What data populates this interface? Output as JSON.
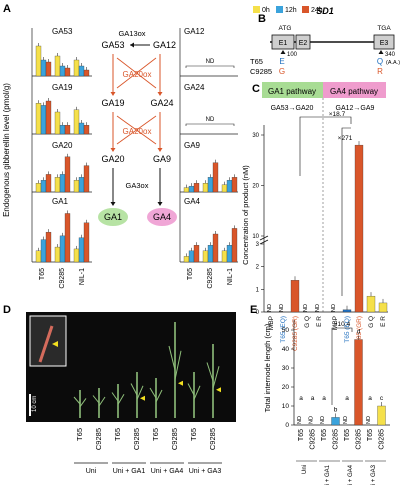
{
  "panels": {
    "A": {
      "letter": "A",
      "ylabel": "Endogenous gibberellin level (pmol/g)",
      "legend": [
        {
          "label": "0h",
          "color": "#f5e04a"
        },
        {
          "label": "12h",
          "color": "#3ba3dc"
        },
        {
          "label": "24h",
          "color": "#d9562a"
        }
      ],
      "genotypes": [
        "T65",
        "C9285",
        "NIL-1"
      ],
      "left_titles": [
        "GA53",
        "GA19",
        "GA20",
        "GA1"
      ],
      "right_titles": [
        "GA12",
        "GA24",
        "GA9",
        "GA4"
      ],
      "nd_label": "ND",
      "pathway": {
        "ga13ox": "GA13ox",
        "ga20ox_1": "GA20ox",
        "ga20ox_2": "GA20ox",
        "ga3ox": "GA3ox",
        "n_ga53": "GA53",
        "n_ga12": "GA12",
        "n_ga19": "GA19",
        "n_ga24": "GA24",
        "n_ga20": "GA20",
        "n_ga9": "GA9",
        "n_ga1": "GA1",
        "n_ga4": "GA4"
      }
    },
    "B": {
      "letter": "B",
      "gene": "SD1",
      "atg": "ATG",
      "tga": "TGA",
      "exons": [
        "E1",
        "E2",
        "E3"
      ],
      "pos_100": "100",
      "pos_340": "340",
      "t65": "T65",
      "c9285": "C9285",
      "t65_aa1": "E",
      "c9285_aa1": "G",
      "t65_aa2": "Q",
      "c9285_aa2": "R",
      "aa_note": "(A.A.)"
    },
    "C": {
      "letter": "C",
      "ylabel": "Concentration of product (nM)",
      "ga1_pathway": "GA1 pathway",
      "ga4_pathway": "GA4 pathway",
      "ga1_reaction": "GA53→GA20",
      "ga4_reaction": "GA12→GA9",
      "fold1": "×18.7",
      "fold2": "×271",
      "nd_label": "ND",
      "xlabels": [
        "MBP",
        "T65 (EQ)",
        "C9285 (GR)",
        "G Q",
        "E R",
        "MBP",
        "T65 (EQ)",
        "C9285 (GR)",
        "G Q",
        "E R"
      ],
      "yticks": [
        "0",
        "1",
        "2",
        "3",
        "10",
        "20",
        "30"
      ]
    },
    "D": {
      "letter": "D",
      "scale_label": "10 cm",
      "plant_labels": [
        "T65",
        "C9285",
        "T65",
        "C9285",
        "T65",
        "C9285",
        "T65",
        "C9285"
      ],
      "groups": [
        "Uni",
        "Uni + GA1",
        "Uni + GA4",
        "Uni + GA3"
      ]
    },
    "E": {
      "letter": "E",
      "ylabel": "Total internode length (cm)",
      "fold": "×10.4",
      "nd_label": "ND",
      "yticks": [
        "0",
        "10",
        "20",
        "30",
        "40",
        "50"
      ],
      "xlabels": [
        "T65",
        "C9285",
        "T65",
        "C9285",
        "T65",
        "C9285",
        "T65",
        "C9285"
      ],
      "groups": [
        "Uni",
        "Uni + GA1",
        "Uni + GA4",
        "Uni + GA3"
      ],
      "letters": [
        "a",
        "a",
        "a",
        "b",
        "a",
        "d",
        "a",
        "c"
      ]
    }
  },
  "chart_data": [
    {
      "type": "bar",
      "title": "GA53",
      "categories": [
        "T65",
        "C9285",
        "NIL-1"
      ],
      "series": [
        {
          "name": "0h",
          "values": [
            15,
            10,
            8
          ]
        },
        {
          "name": "12h",
          "values": [
            8,
            5,
            5
          ]
        },
        {
          "name": "24h",
          "values": [
            7,
            4,
            3
          ]
        }
      ],
      "ylim": [
        0,
        20
      ]
    },
    {
      "type": "bar",
      "title": "GA19",
      "categories": [
        "T65",
        "C9285",
        "NIL-1"
      ],
      "series": [
        {
          "name": "0h",
          "values": [
            28,
            20,
            22
          ]
        },
        {
          "name": "12h",
          "values": [
            26,
            8,
            10
          ]
        },
        {
          "name": "24h",
          "values": [
            30,
            8,
            8
          ]
        }
      ],
      "ylim": [
        0,
        40
      ]
    },
    {
      "type": "bar",
      "title": "GA20",
      "categories": [
        "T65",
        "C9285",
        "NIL-1"
      ],
      "series": [
        {
          "name": "0h",
          "values": [
            3,
            5,
            4
          ]
        },
        {
          "name": "12h",
          "values": [
            4,
            6,
            5
          ]
        },
        {
          "name": "24h",
          "values": [
            6,
            12,
            9
          ]
        }
      ],
      "ylim": [
        0,
        15
      ]
    },
    {
      "type": "bar",
      "title": "GA1",
      "categories": [
        "T65",
        "C9285",
        "NIL-1"
      ],
      "series": [
        {
          "name": "0h",
          "values": [
            0.6,
            0.8,
            0.7
          ]
        },
        {
          "name": "12h",
          "values": [
            1.2,
            1.4,
            1.3
          ]
        },
        {
          "name": "24h",
          "values": [
            1.6,
            2.6,
            2.1
          ]
        }
      ],
      "ylim": [
        0,
        3
      ]
    },
    {
      "type": "bar",
      "title": "GA9",
      "categories": [
        "T65",
        "C9285",
        "NIL-1"
      ],
      "series": [
        {
          "name": "0h",
          "values": [
            0.3,
            0.6,
            0.5
          ]
        },
        {
          "name": "12h",
          "values": [
            0.4,
            1.0,
            0.8
          ]
        },
        {
          "name": "24h",
          "values": [
            0.6,
            2.0,
            1.0
          ]
        }
      ],
      "ylim": [
        0,
        3
      ]
    },
    {
      "type": "bar",
      "title": "GA4",
      "categories": [
        "T65",
        "C9285",
        "NIL-1"
      ],
      "series": [
        {
          "name": "0h",
          "values": [
            0.1,
            0.2,
            0.2
          ]
        },
        {
          "name": "12h",
          "values": [
            0.2,
            0.3,
            0.3
          ]
        },
        {
          "name": "24h",
          "values": [
            0.3,
            0.5,
            0.6
          ]
        }
      ],
      "ylim": [
        0,
        1
      ]
    },
    {
      "type": "bar",
      "categories": [
        "MBP",
        "T65 (EQ)",
        "C9285 (GR)",
        "G Q",
        "E R",
        "MBP",
        "T65 (EQ)",
        "C9285 (GR)",
        "G Q",
        "E R"
      ],
      "values": [
        0,
        0,
        1.4,
        0,
        0,
        0,
        0.1,
        28,
        0.7,
        0.4
      ],
      "ylabel": "Concentration of product (nM)",
      "ylim": [
        0,
        30
      ]
    },
    {
      "type": "bar",
      "categories": [
        "T65 Uni",
        "C9285 Uni",
        "T65 Uni+GA1",
        "C9285 Uni+GA1",
        "T65 Uni+GA4",
        "C9285 Uni+GA4",
        "T65 Uni+GA3",
        "C9285 Uni+GA3"
      ],
      "values": [
        0,
        0,
        0,
        4,
        0,
        45,
        0,
        10
      ],
      "ylabel": "Total internode length (cm)",
      "ylim": [
        0,
        50
      ]
    }
  ]
}
